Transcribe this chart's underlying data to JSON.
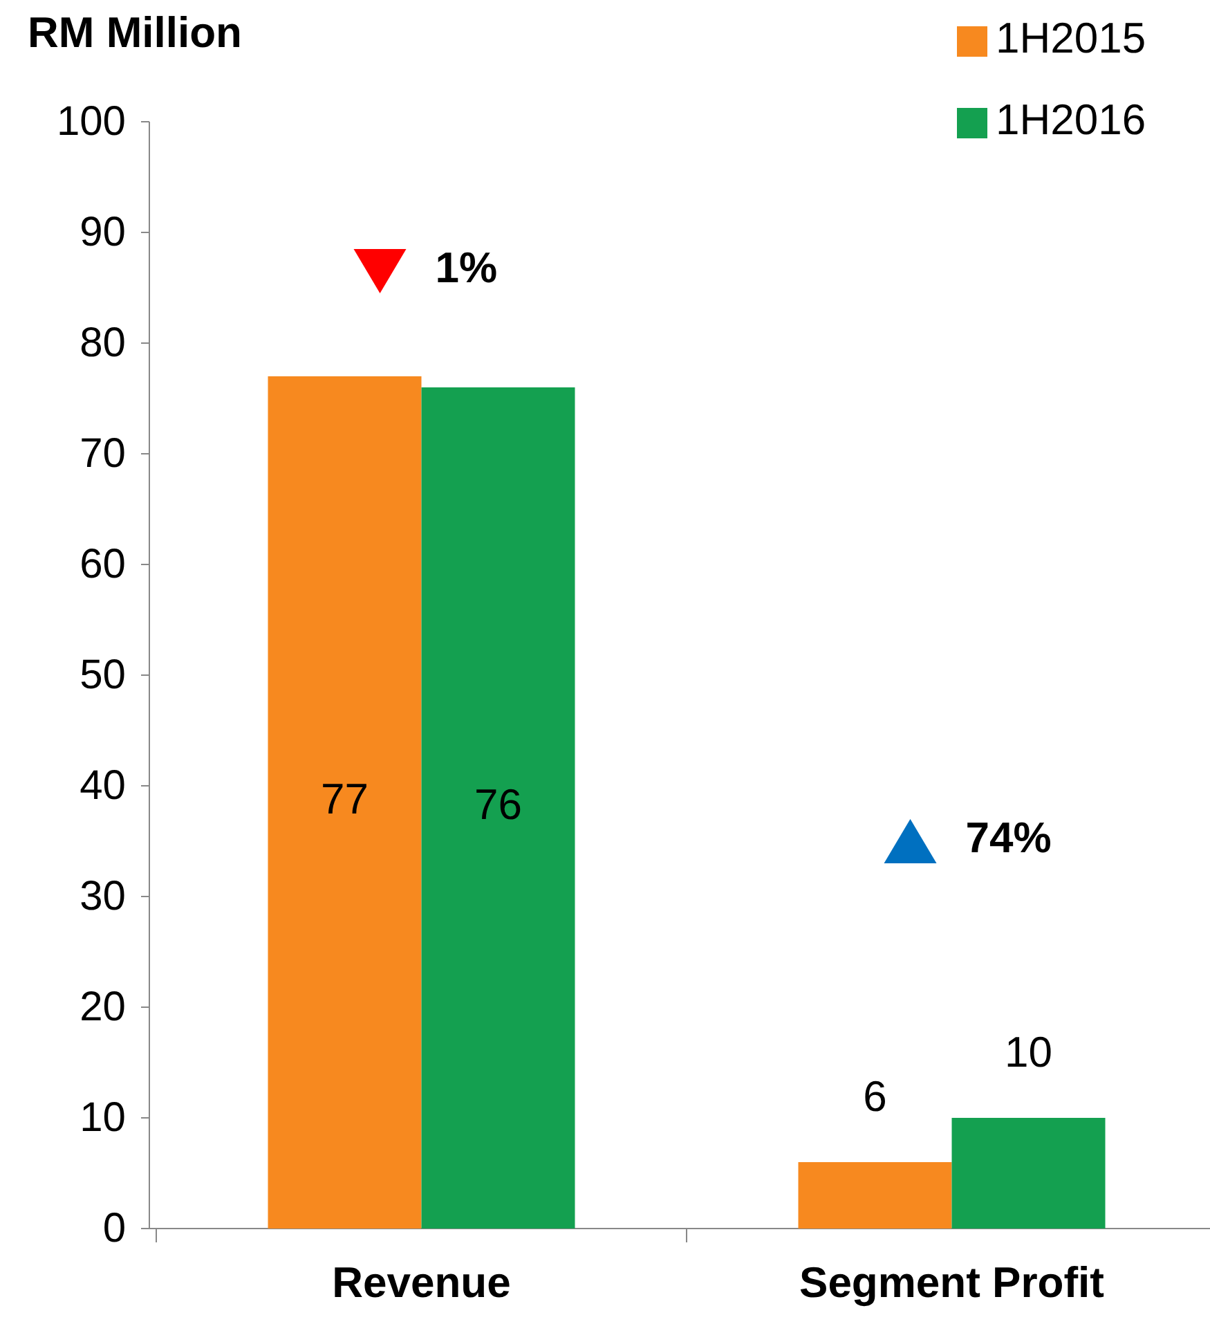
{
  "chart_data": {
    "type": "bar",
    "ylabel": "RM Million",
    "categories": [
      "Revenue",
      "Segment Profit"
    ],
    "series": [
      {
        "name": "1H2015",
        "color": "#f7891f",
        "values": [
          77,
          6
        ]
      },
      {
        "name": "1H2016",
        "color": "#14a050",
        "values": [
          76,
          10
        ]
      }
    ],
    "ylim": [
      0,
      100
    ],
    "yticks": [
      0,
      10,
      20,
      30,
      40,
      50,
      60,
      70,
      80,
      90,
      100
    ],
    "grid": false,
    "legend": "top right",
    "data_labels": true,
    "annotations": [
      "1%",
      "74%"
    ]
  }
}
